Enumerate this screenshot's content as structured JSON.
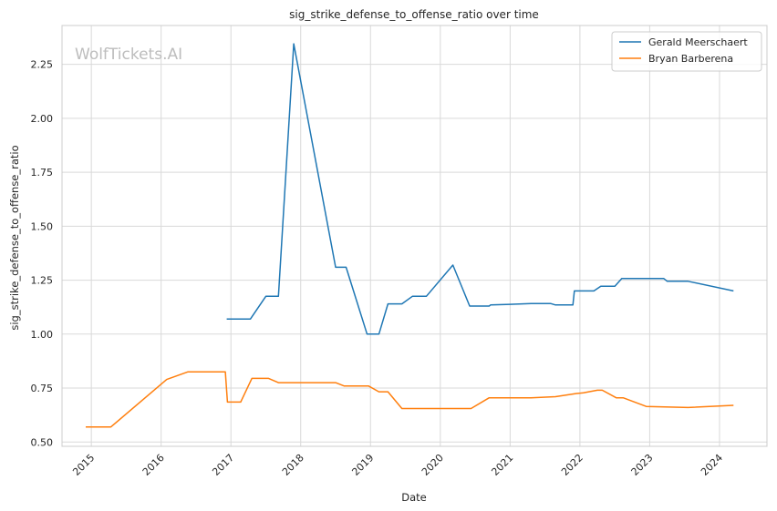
{
  "chart_data": {
    "type": "line",
    "title": "sig_strike_defense_to_offense_ratio over time",
    "xlabel": "Date",
    "ylabel": "sig_strike_defense_to_offense_ratio",
    "watermark": "WolfTickets.AI",
    "xlim": [
      2014.58,
      2024.68
    ],
    "ylim": [
      0.48,
      2.43
    ],
    "xticks": [
      2015,
      2016,
      2017,
      2018,
      2019,
      2020,
      2021,
      2022,
      2023,
      2024
    ],
    "xtick_labels": [
      "2015",
      "2016",
      "2017",
      "2018",
      "2019",
      "2020",
      "2021",
      "2022",
      "2023",
      "2024"
    ],
    "yticks": [
      0.5,
      0.75,
      1.0,
      1.25,
      1.5,
      1.75,
      2.0,
      2.25
    ],
    "ytick_labels": [
      "0.50",
      "0.75",
      "1.00",
      "1.25",
      "1.50",
      "1.75",
      "2.00",
      "2.25"
    ],
    "grid": true,
    "legend": "top-right",
    "series": [
      {
        "name": "Gerald Meerschaert",
        "color": "#1f77b4",
        "x": [
          2016.94,
          2017.28,
          2017.5,
          2017.68,
          2017.9,
          2018.5,
          2018.65,
          2018.95,
          2019.12,
          2019.25,
          2019.45,
          2019.6,
          2019.8,
          2020.18,
          2020.42,
          2020.7,
          2020.72,
          2021.0,
          2021.3,
          2021.58,
          2021.65,
          2021.9,
          2021.92,
          2022.2,
          2022.3,
          2022.5,
          2022.6,
          2023.2,
          2023.25,
          2023.55,
          2024.2
        ],
        "y": [
          1.07,
          1.07,
          1.175,
          1.175,
          2.345,
          1.31,
          1.31,
          1.0,
          1.0,
          1.14,
          1.14,
          1.175,
          1.175,
          1.32,
          1.13,
          1.13,
          1.135,
          1.138,
          1.142,
          1.142,
          1.135,
          1.135,
          1.2,
          1.2,
          1.222,
          1.222,
          1.258,
          1.258,
          1.245,
          1.245,
          1.2
        ]
      },
      {
        "name": "Bryan Barberena",
        "color": "#ff7f0e",
        "x": [
          2014.92,
          2015.28,
          2016.08,
          2016.38,
          2016.92,
          2016.95,
          2017.14,
          2017.3,
          2017.54,
          2017.68,
          2018.5,
          2018.62,
          2018.97,
          2019.12,
          2019.25,
          2019.45,
          2020.44,
          2020.7,
          2021.3,
          2021.65,
          2021.95,
          2022.05,
          2022.25,
          2022.32,
          2022.52,
          2022.62,
          2022.95,
          2023.55,
          2024.2
        ],
        "y": [
          0.57,
          0.57,
          0.79,
          0.825,
          0.825,
          0.685,
          0.685,
          0.795,
          0.795,
          0.775,
          0.775,
          0.76,
          0.76,
          0.733,
          0.733,
          0.655,
          0.655,
          0.705,
          0.705,
          0.71,
          0.725,
          0.728,
          0.74,
          0.74,
          0.705,
          0.705,
          0.665,
          0.66,
          0.67
        ]
      }
    ]
  }
}
